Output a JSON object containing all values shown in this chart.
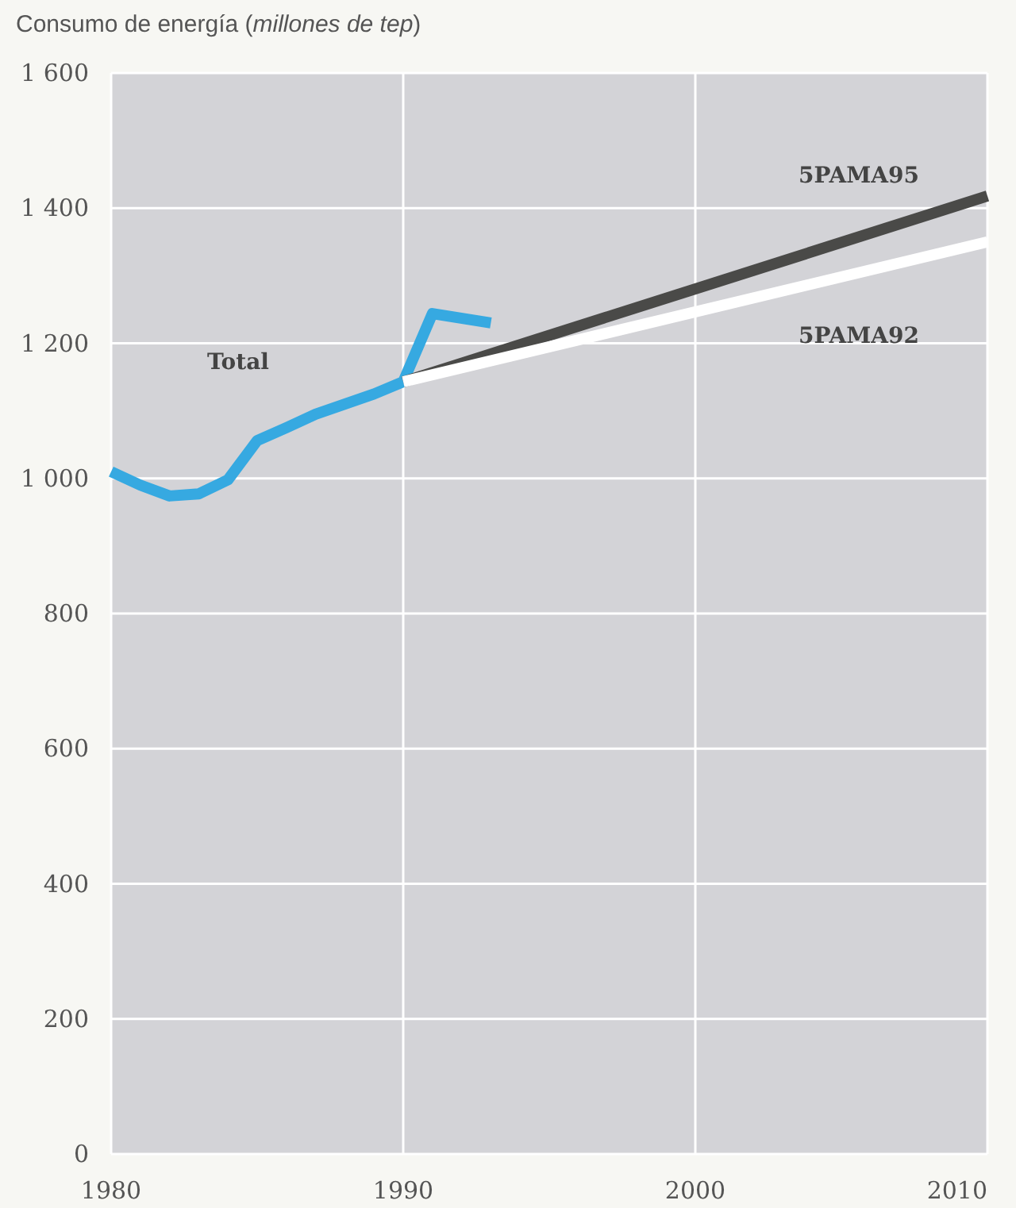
{
  "chart_data": {
    "type": "line",
    "ylabel": "Consumo de energía (millones de tep)",
    "xlim": [
      1980,
      2010
    ],
    "xticks": [
      1980,
      1990,
      2000,
      2010
    ],
    "ylim": [
      0,
      1600
    ],
    "yticks": [
      0,
      200,
      400,
      600,
      800,
      {
        "value": 1000,
        "label": "1 000"
      },
      {
        "value": 1200,
        "label": "1 200"
      },
      {
        "value": 1400,
        "label": "1 400"
      },
      {
        "value": 1600,
        "label": "1 600"
      }
    ],
    "grid": true,
    "series": [
      {
        "name": "Total",
        "color": "#36a9e1",
        "x": [
          1980,
          1981,
          1982,
          1983,
          1984,
          1985,
          1986,
          1987,
          1988,
          1989,
          1990,
          1991,
          1993
        ],
        "values": [
          1010,
          990,
          974,
          977,
          998,
          1056,
          1075,
          1095,
          1110,
          1125,
          1143,
          1244,
          1230
        ]
      },
      {
        "name": "5PAMA95",
        "color": "#4a4a48",
        "x": [
          1990,
          2010
        ],
        "values": [
          1143,
          1418
        ]
      },
      {
        "name": "5PAMA92",
        "color": "#ffffff",
        "x": [
          1990,
          2010
        ],
        "values": [
          1143,
          1350
        ]
      }
    ]
  }
}
